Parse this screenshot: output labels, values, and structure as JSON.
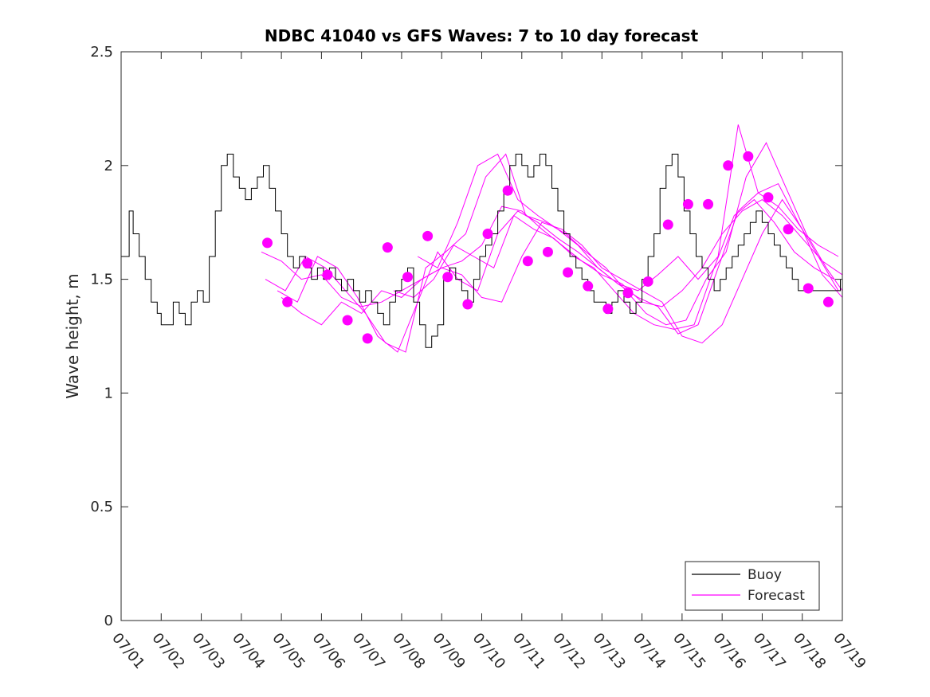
{
  "chart_data": {
    "type": "line",
    "title": "NDBC 41040 vs GFS Waves: 7 to 10 day forecast",
    "xlabel": "",
    "ylabel": "Wave height, m",
    "xlim": [
      0,
      18
    ],
    "ylim": [
      0,
      2.5
    ],
    "x_tick_labels": [
      "07/01",
      "07/02",
      "07/03",
      "07/04",
      "07/05",
      "07/06",
      "07/07",
      "07/08",
      "07/09",
      "07/10",
      "07/11",
      "07/12",
      "07/13",
      "07/14",
      "07/15",
      "07/16",
      "07/17",
      "07/18",
      "07/19"
    ],
    "y_tick_labels": [
      "0",
      "0.5",
      "1",
      "1.5",
      "2",
      "2.5"
    ],
    "y_ticks": [
      0,
      0.5,
      1,
      1.5,
      2,
      2.5
    ],
    "grid": false,
    "legend_position": "bottom-right",
    "x_unit_note": "x values are days since 07/01 00:00",
    "colors": {
      "buoy": "#000000",
      "forecast": "#ff00ff"
    },
    "series": [
      {
        "name": "Buoy",
        "x": [
          0,
          0.2,
          0.3,
          0.45,
          0.6,
          0.75,
          0.9,
          1.0,
          1.15,
          1.3,
          1.45,
          1.6,
          1.75,
          1.9,
          2.05,
          2.2,
          2.35,
          2.5,
          2.65,
          2.8,
          2.95,
          3.1,
          3.25,
          3.4,
          3.55,
          3.7,
          3.85,
          4.0,
          4.15,
          4.3,
          4.45,
          4.6,
          4.75,
          4.9,
          5.05,
          5.2,
          5.35,
          5.5,
          5.65,
          5.8,
          5.95,
          6.1,
          6.25,
          6.4,
          6.55,
          6.7,
          6.85,
          7.0,
          7.15,
          7.3,
          7.45,
          7.6,
          7.75,
          7.9,
          8.05,
          8.2,
          8.35,
          8.5,
          8.65,
          8.8,
          8.95,
          9.1,
          9.25,
          9.4,
          9.55,
          9.7,
          9.85,
          10.0,
          10.15,
          10.3,
          10.45,
          10.6,
          10.75,
          10.9,
          11.05,
          11.2,
          11.35,
          11.5,
          11.65,
          11.8,
          11.95,
          12.1,
          12.25,
          12.4,
          12.55,
          12.7,
          12.85,
          13.0,
          13.15,
          13.3,
          13.45,
          13.6,
          13.75,
          13.9,
          14.05,
          14.2,
          14.35,
          14.5,
          14.65,
          14.8,
          14.95,
          15.1,
          15.25,
          15.4,
          15.55,
          15.7,
          15.85,
          16.0,
          16.15,
          16.3,
          16.45,
          16.6,
          16.75,
          16.9,
          17.05,
          17.2,
          17.35,
          17.5,
          17.65,
          17.8,
          17.95
        ],
        "y": [
          1.6,
          1.8,
          1.7,
          1.6,
          1.5,
          1.4,
          1.35,
          1.3,
          1.3,
          1.4,
          1.35,
          1.3,
          1.4,
          1.45,
          1.4,
          1.6,
          1.8,
          2.0,
          2.05,
          1.95,
          1.9,
          1.85,
          1.9,
          1.95,
          2.0,
          1.9,
          1.8,
          1.7,
          1.6,
          1.55,
          1.6,
          1.55,
          1.5,
          1.55,
          1.5,
          1.55,
          1.5,
          1.45,
          1.5,
          1.45,
          1.4,
          1.45,
          1.4,
          1.35,
          1.3,
          1.4,
          1.45,
          1.5,
          1.55,
          1.4,
          1.3,
          1.2,
          1.25,
          1.3,
          1.5,
          1.55,
          1.5,
          1.45,
          1.4,
          1.5,
          1.6,
          1.65,
          1.7,
          1.8,
          1.9,
          2.0,
          2.05,
          2.0,
          1.95,
          2.0,
          2.05,
          2.0,
          1.9,
          1.8,
          1.7,
          1.6,
          1.55,
          1.5,
          1.45,
          1.4,
          1.4,
          1.35,
          1.4,
          1.45,
          1.4,
          1.35,
          1.4,
          1.5,
          1.6,
          1.7,
          1.9,
          2.0,
          2.05,
          1.95,
          1.8,
          1.7,
          1.6,
          1.55,
          1.5,
          1.45,
          1.5,
          1.55,
          1.6,
          1.65,
          1.7,
          1.75,
          1.8,
          1.75,
          1.7,
          1.65,
          1.6,
          1.55,
          1.5,
          1.45,
          1.45,
          1.45,
          1.45,
          1.45,
          1.45,
          1.45,
          1.5
        ]
      },
      {
        "name": "Forecast",
        "points_x": [
          3.65,
          4.15,
          4.65,
          5.15,
          5.65,
          6.15,
          6.65,
          7.15,
          7.65,
          8.15,
          8.65,
          9.15,
          9.65,
          10.15,
          10.65,
          11.15,
          11.65,
          12.15,
          12.65,
          13.15,
          13.65,
          14.15,
          14.65,
          15.15,
          15.65,
          16.15,
          16.65,
          17.15,
          17.65
        ],
        "points_y": [
          1.66,
          1.4,
          1.57,
          1.52,
          1.32,
          1.24,
          1.64,
          1.51,
          1.69,
          1.51,
          1.39,
          1.7,
          1.89,
          1.58,
          1.62,
          1.53,
          1.47,
          1.37,
          1.44,
          1.49,
          1.74,
          1.83,
          1.83,
          2.0,
          2.04,
          1.86,
          1.72,
          1.46,
          1.4
        ],
        "lines": [
          {
            "x": [
              3.5,
              4.0,
              4.5,
              5.0,
              5.5,
              6.0,
              6.5,
              7.0,
              7.5,
              8.0,
              8.5,
              9.0,
              9.5,
              10.0,
              10.5,
              11.0,
              11.5,
              12.0,
              12.5,
              13.0,
              13.5,
              14.0,
              14.5,
              15.0,
              15.5,
              16.0,
              16.5,
              17.0,
              17.5,
              18.0
            ],
            "y": [
              1.62,
              1.58,
              1.5,
              1.52,
              1.42,
              1.38,
              1.4,
              1.45,
              1.5,
              1.55,
              1.58,
              1.65,
              1.82,
              1.8,
              1.72,
              1.65,
              1.58,
              1.52,
              1.48,
              1.4,
              1.38,
              1.45,
              1.55,
              1.7,
              1.8,
              1.85,
              1.78,
              1.68,
              1.58,
              1.52
            ]
          },
          {
            "x": [
              3.6,
              4.1,
              4.6,
              5.1,
              5.6,
              6.1,
              6.6,
              7.1,
              7.6,
              8.1,
              8.6,
              9.1,
              9.6,
              10.1,
              10.6,
              11.1,
              11.6,
              12.1,
              12.6,
              13.1,
              13.6,
              14.1,
              14.6,
              15.1,
              15.6,
              16.1,
              16.6,
              17.1,
              17.6,
              18.0
            ],
            "y": [
              1.5,
              1.45,
              1.6,
              1.55,
              1.45,
              1.35,
              1.22,
              1.18,
              1.55,
              1.62,
              1.7,
              1.95,
              2.05,
              1.78,
              1.75,
              1.7,
              1.62,
              1.55,
              1.45,
              1.35,
              1.3,
              1.32,
              1.5,
              1.62,
              1.95,
              2.1,
              1.9,
              1.7,
              1.55,
              1.45
            ]
          },
          {
            "x": [
              3.9,
              4.4,
              4.9,
              5.4,
              5.9,
              6.4,
              6.9,
              7.4,
              7.9,
              8.4,
              8.9,
              9.4,
              9.9,
              10.4,
              10.9,
              11.4,
              11.9,
              12.4,
              12.9,
              13.4,
              13.9,
              14.4,
              14.9,
              15.4,
              15.9,
              16.4,
              16.9,
              17.4,
              17.9
            ],
            "y": [
              1.45,
              1.4,
              1.6,
              1.55,
              1.42,
              1.25,
              1.18,
              1.4,
              1.62,
              1.5,
              1.45,
              1.7,
              1.8,
              1.75,
              1.68,
              1.62,
              1.55,
              1.48,
              1.42,
              1.38,
              1.26,
              1.3,
              1.55,
              1.8,
              1.88,
              1.92,
              1.75,
              1.6,
              1.45
            ]
          },
          {
            "x": [
              4.0,
              4.5,
              5.0,
              5.5,
              6.0,
              6.5,
              7.0,
              7.5,
              8.0,
              8.5,
              9.0,
              9.5,
              10.0,
              10.5,
              11.0,
              11.5,
              12.0,
              12.5,
              13.0,
              13.5,
              14.0,
              14.5,
              15.0,
              15.5,
              16.0,
              16.5,
              17.0,
              17.5,
              18.0
            ],
            "y": [
              1.42,
              1.35,
              1.3,
              1.4,
              1.35,
              1.45,
              1.42,
              1.5,
              1.55,
              1.52,
              1.42,
              1.4,
              1.6,
              1.75,
              1.72,
              1.65,
              1.55,
              1.5,
              1.45,
              1.4,
              1.25,
              1.22,
              1.3,
              1.5,
              1.7,
              1.85,
              1.72,
              1.52,
              1.42
            ]
          },
          {
            "x": [
              7.4,
              7.9,
              8.4,
              8.9,
              9.4,
              9.9,
              10.4,
              10.9,
              11.4,
              11.9,
              12.4,
              12.9,
              13.4,
              13.9,
              14.4,
              14.9,
              15.4,
              15.9,
              16.4,
              16.9,
              17.4,
              17.9
            ],
            "y": [
              1.6,
              1.55,
              1.75,
              2.0,
              2.05,
              1.85,
              1.78,
              1.72,
              1.65,
              1.55,
              1.48,
              1.45,
              1.52,
              1.6,
              1.5,
              1.6,
              2.18,
              1.88,
              1.82,
              1.72,
              1.65,
              1.6
            ]
          },
          {
            "x": [
              6.8,
              7.3,
              7.8,
              8.3,
              8.8,
              9.3,
              9.8,
              10.3,
              10.8,
              11.3,
              11.8,
              12.3,
              12.8,
              13.3,
              13.8,
              14.3,
              14.8,
              15.3,
              15.8,
              16.3,
              16.8,
              17.3,
              17.8
            ],
            "y": [
              1.45,
              1.42,
              1.5,
              1.65,
              1.6,
              1.55,
              1.78,
              1.72,
              1.68,
              1.6,
              1.55,
              1.45,
              1.35,
              1.3,
              1.28,
              1.3,
              1.55,
              1.78,
              1.85,
              1.75,
              1.62,
              1.55,
              1.5
            ]
          }
        ]
      }
    ]
  }
}
